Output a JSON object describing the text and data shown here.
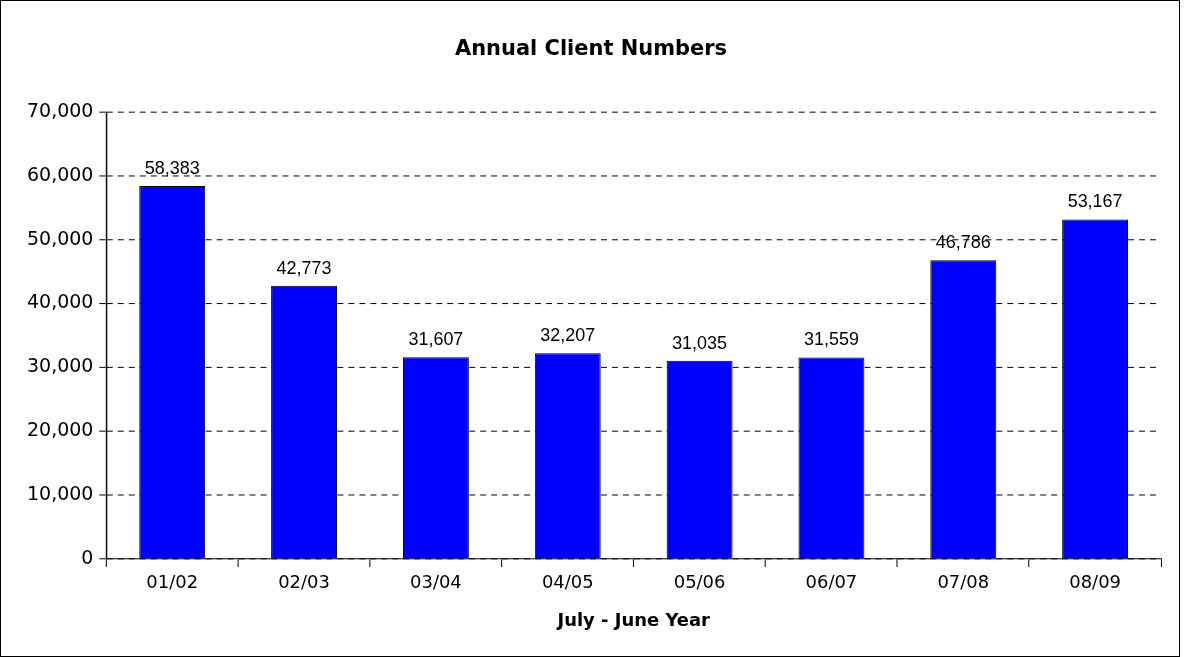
{
  "chart_data": {
    "type": "bar",
    "title": "Annual Client Numbers",
    "xlabel": "July - June Year",
    "categories": [
      "01/02",
      "02/03",
      "03/04",
      "04/05",
      "05/06",
      "06/07",
      "07/08",
      "08/09"
    ],
    "values": [
      58383,
      42773,
      31607,
      32207,
      31035,
      31559,
      46786,
      53167
    ],
    "color": "#0000ff",
    "ylim": [
      0,
      70000
    ],
    "yticks": [
      {
        "value": 0,
        "label": "0"
      },
      {
        "value": 10000,
        "label": "10,000"
      },
      {
        "value": 20000,
        "label": "20,000"
      },
      {
        "value": 30000,
        "label": "30,000"
      },
      {
        "value": 40000,
        "label": "40,000"
      },
      {
        "value": 50000,
        "label": "50,000"
      },
      {
        "value": 60000,
        "label": "60,000"
      },
      {
        "value": 70000,
        "label": "70,000"
      }
    ],
    "value_labels": [
      "58,383",
      "42,773",
      "31,607",
      "32,207",
      "31,035",
      "31,559",
      "46,786",
      "53,167"
    ],
    "grid": "y",
    "legend": false
  }
}
